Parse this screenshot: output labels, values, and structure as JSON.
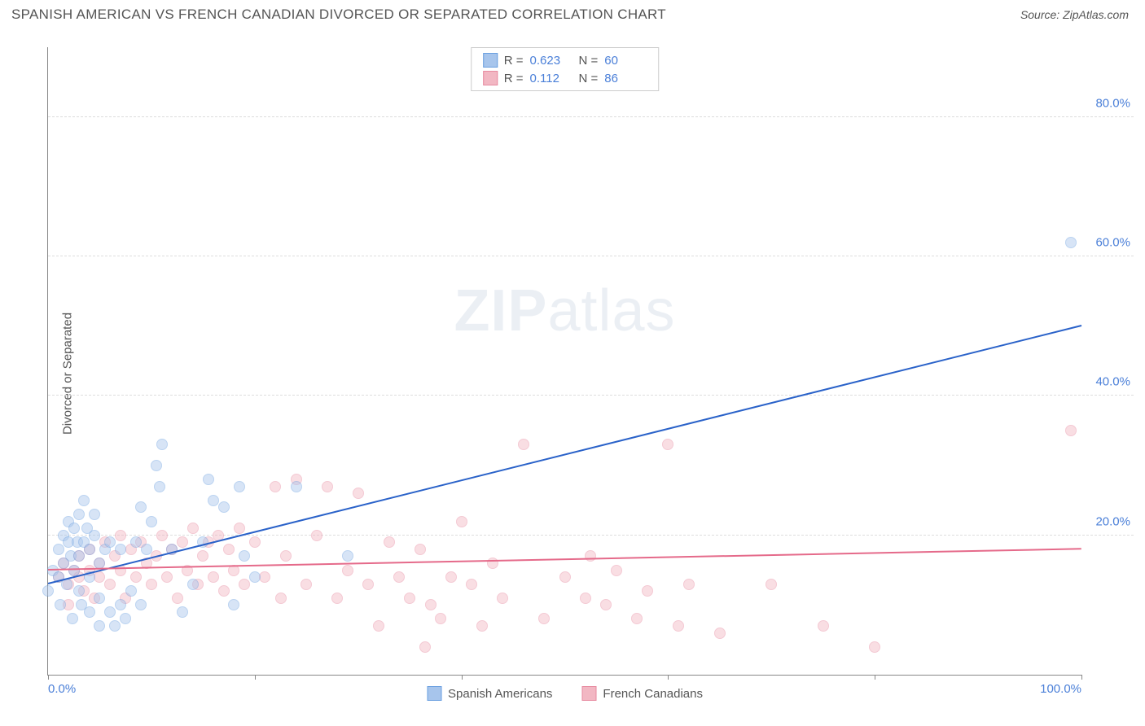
{
  "header": {
    "title": "SPANISH AMERICAN VS FRENCH CANADIAN DIVORCED OR SEPARATED CORRELATION CHART",
    "source_prefix": "Source: ",
    "source_name": "ZipAtlas.com"
  },
  "watermark": {
    "zip": "ZIP",
    "atlas": "atlas"
  },
  "chart": {
    "type": "scatter",
    "ylabel": "Divorced or Separated",
    "xlim": [
      0,
      100
    ],
    "ylim": [
      0,
      90
    ],
    "xtick_positions": [
      0,
      20,
      40,
      60,
      80,
      100
    ],
    "xtick_labels_shown": {
      "0": "0.0%",
      "100": "100.0%"
    },
    "ytick_positions": [
      20,
      40,
      60,
      80
    ],
    "ytick_labels": {
      "20": "20.0%",
      "40": "40.0%",
      "60": "60.0%",
      "80": "80.0%"
    },
    "grid_color": "#dddddd",
    "axis_color": "#888888",
    "background_color": "#ffffff",
    "tick_label_color": "#4a7fd8",
    "label_color": "#555555",
    "label_fontsize": 15,
    "marker_radius": 7,
    "marker_opacity": 0.45,
    "trend_line_width": 2,
    "series": [
      {
        "name": "Spanish Americans",
        "fill_color": "#a7c5ec",
        "stroke_color": "#6a9fe0",
        "line_color": "#2a62c9",
        "R": "0.623",
        "N": "60",
        "trend": {
          "x1": 0,
          "y1": 13,
          "x2": 100,
          "y2": 50
        },
        "points": [
          [
            0,
            12
          ],
          [
            0.5,
            15
          ],
          [
            1,
            14
          ],
          [
            1,
            18
          ],
          [
            1.2,
            10
          ],
          [
            1.5,
            16
          ],
          [
            1.5,
            20
          ],
          [
            1.8,
            13
          ],
          [
            2,
            19
          ],
          [
            2,
            22
          ],
          [
            2.2,
            17
          ],
          [
            2.4,
            8
          ],
          [
            2.5,
            15
          ],
          [
            2.5,
            21
          ],
          [
            2.8,
            19
          ],
          [
            3,
            12
          ],
          [
            3,
            17
          ],
          [
            3,
            23
          ],
          [
            3.2,
            10
          ],
          [
            3.5,
            19
          ],
          [
            3.5,
            25
          ],
          [
            3.8,
            21
          ],
          [
            4,
            9
          ],
          [
            4,
            18
          ],
          [
            4,
            14
          ],
          [
            4.5,
            20
          ],
          [
            4.5,
            23
          ],
          [
            5,
            16
          ],
          [
            5,
            11
          ],
          [
            5,
            7
          ],
          [
            5.5,
            18
          ],
          [
            6,
            9
          ],
          [
            6,
            19
          ],
          [
            6.5,
            7
          ],
          [
            7,
            10
          ],
          [
            7,
            18
          ],
          [
            7.5,
            8
          ],
          [
            8,
            12
          ],
          [
            8.5,
            19
          ],
          [
            9,
            10
          ],
          [
            9,
            24
          ],
          [
            9.5,
            18
          ],
          [
            10,
            22
          ],
          [
            10.5,
            30
          ],
          [
            10.8,
            27
          ],
          [
            11,
            33
          ],
          [
            12,
            18
          ],
          [
            13,
            9
          ],
          [
            14,
            13
          ],
          [
            15,
            19
          ],
          [
            15.5,
            28
          ],
          [
            16,
            25
          ],
          [
            17,
            24
          ],
          [
            18,
            10
          ],
          [
            18.5,
            27
          ],
          [
            19,
            17
          ],
          [
            20,
            14
          ],
          [
            24,
            27
          ],
          [
            29,
            17
          ],
          [
            99,
            62
          ]
        ]
      },
      {
        "name": "French Canadians",
        "fill_color": "#f2b7c3",
        "stroke_color": "#e78aa0",
        "line_color": "#e56a8a",
        "R": "0.112",
        "N": "86",
        "trend": {
          "x1": 0,
          "y1": 15,
          "x2": 100,
          "y2": 18
        },
        "points": [
          [
            1,
            14
          ],
          [
            1.5,
            16
          ],
          [
            2,
            13
          ],
          [
            2,
            10
          ],
          [
            2.5,
            15
          ],
          [
            3,
            14
          ],
          [
            3,
            17
          ],
          [
            3.5,
            12
          ],
          [
            4,
            15
          ],
          [
            4,
            18
          ],
          [
            4.5,
            11
          ],
          [
            5,
            16
          ],
          [
            5,
            14
          ],
          [
            5.5,
            19
          ],
          [
            6,
            13
          ],
          [
            6.5,
            17
          ],
          [
            7,
            15
          ],
          [
            7,
            20
          ],
          [
            7.5,
            11
          ],
          [
            8,
            18
          ],
          [
            8.5,
            14
          ],
          [
            9,
            19
          ],
          [
            9.5,
            16
          ],
          [
            10,
            13
          ],
          [
            10.5,
            17
          ],
          [
            11,
            20
          ],
          [
            11.5,
            14
          ],
          [
            12,
            18
          ],
          [
            12.5,
            11
          ],
          [
            13,
            19
          ],
          [
            13.5,
            15
          ],
          [
            14,
            21
          ],
          [
            14.5,
            13
          ],
          [
            15,
            17
          ],
          [
            15.5,
            19
          ],
          [
            16,
            14
          ],
          [
            16.5,
            20
          ],
          [
            17,
            12
          ],
          [
            17.5,
            18
          ],
          [
            18,
            15
          ],
          [
            18.5,
            21
          ],
          [
            19,
            13
          ],
          [
            20,
            19
          ],
          [
            21,
            14
          ],
          [
            22,
            27
          ],
          [
            22.5,
            11
          ],
          [
            23,
            17
          ],
          [
            24,
            28
          ],
          [
            25,
            13
          ],
          [
            26,
            20
          ],
          [
            27,
            27
          ],
          [
            28,
            11
          ],
          [
            29,
            15
          ],
          [
            30,
            26
          ],
          [
            31,
            13
          ],
          [
            32,
            7
          ],
          [
            33,
            19
          ],
          [
            34,
            14
          ],
          [
            35,
            11
          ],
          [
            36,
            18
          ],
          [
            36.5,
            4
          ],
          [
            37,
            10
          ],
          [
            38,
            8
          ],
          [
            39,
            14
          ],
          [
            40,
            22
          ],
          [
            41,
            13
          ],
          [
            42,
            7
          ],
          [
            43,
            16
          ],
          [
            44,
            11
          ],
          [
            46,
            33
          ],
          [
            48,
            8
          ],
          [
            50,
            14
          ],
          [
            52,
            11
          ],
          [
            52.5,
            17
          ],
          [
            54,
            10
          ],
          [
            55,
            15
          ],
          [
            57,
            8
          ],
          [
            58,
            12
          ],
          [
            60,
            33
          ],
          [
            61,
            7
          ],
          [
            62,
            13
          ],
          [
            65,
            6
          ],
          [
            70,
            13
          ],
          [
            75,
            7
          ],
          [
            80,
            4
          ],
          [
            99,
            35
          ]
        ]
      }
    ],
    "corr_legend_labels": {
      "R": "R =",
      "N": "N ="
    },
    "series_legend_label": {
      "spanish": "Spanish Americans",
      "french": "French Canadians"
    }
  }
}
